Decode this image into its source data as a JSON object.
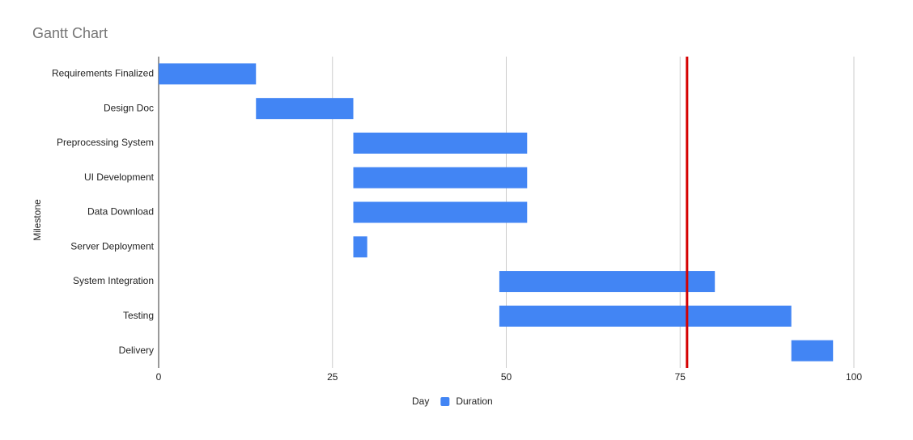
{
  "chart_data": {
    "type": "gantt",
    "title": "Gantt Chart",
    "y_label": "Milestone",
    "categories": [
      "Requirements Finalized",
      "Design Doc",
      "Preprocessing System",
      "UI Development",
      "Data Download",
      "Server Deployment",
      "System Integration",
      "Testing",
      "Delivery"
    ],
    "series": [
      {
        "name": "Day",
        "color": "none",
        "values": [
          0,
          14,
          28,
          28,
          28,
          28,
          49,
          49,
          91
        ]
      },
      {
        "name": "Duration",
        "color": "#4285f4",
        "values": [
          14,
          14,
          25,
          25,
          25,
          2,
          31,
          42,
          6
        ]
      }
    ],
    "xlim": [
      0,
      100
    ],
    "xticks": [
      0,
      25,
      50,
      75,
      100
    ],
    "grid": true,
    "reference_line": {
      "value": 76,
      "color": "#d50000"
    }
  }
}
